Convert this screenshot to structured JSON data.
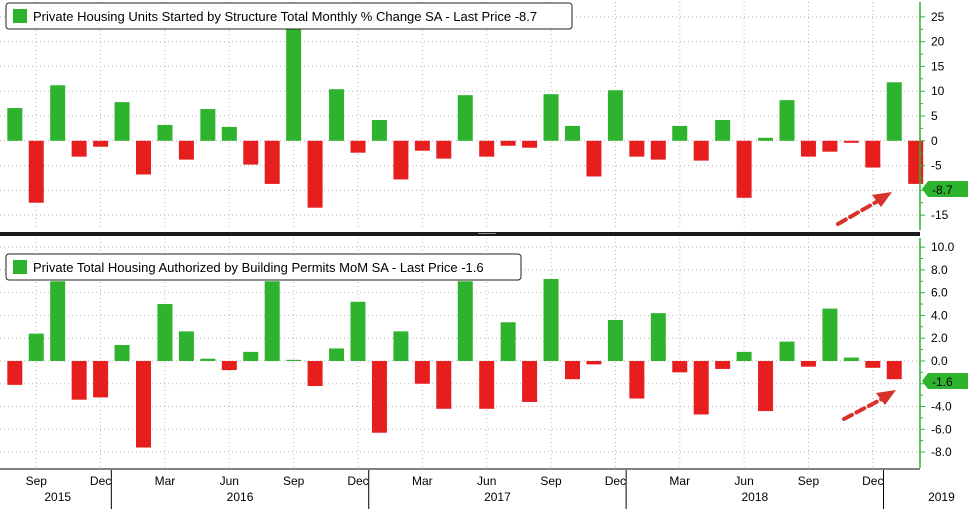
{
  "chart_data": [
    {
      "type": "bar",
      "legend_label": "Private Housing Units Started by Structure Total Monthly % Change SA - Last Price -8.7",
      "last_value_label": "-8.7",
      "ylim": [
        -18,
        28
      ],
      "yticks": [
        -15,
        -10,
        -5,
        0,
        5,
        10,
        15,
        20,
        25
      ],
      "ytick_labels": [
        "-15",
        "-10",
        "-5",
        "0",
        "5",
        "10",
        "15",
        "20",
        "25"
      ],
      "values": [
        6.6,
        -12.5,
        11.2,
        -3.2,
        -1.2,
        7.8,
        -6.8,
        3.2,
        -3.8,
        6.4,
        2.8,
        -4.8,
        -8.7,
        23.0,
        -13.5,
        10.4,
        -2.4,
        4.2,
        -7.8,
        -2.0,
        -3.6,
        9.2,
        -3.2,
        -1.0,
        -1.4,
        9.4,
        3.0,
        -7.2,
        10.2,
        -3.2,
        -3.8,
        3.0,
        -4.0,
        4.2,
        -11.5,
        0.6,
        8.2,
        -3.2,
        -2.2,
        -0.4,
        -5.4,
        11.8,
        -8.7
      ],
      "last_label_bg": "#2db32d"
    },
    {
      "type": "bar",
      "legend_label": "Private Total Housing Authorized by Building Permits MoM SA - Last Price -1.6",
      "last_value_label": "-1.6",
      "ylim": [
        -9.4,
        10.8
      ],
      "yticks": [
        -8,
        -6,
        -4,
        -2,
        0,
        2,
        4,
        6,
        8,
        10
      ],
      "ytick_labels": [
        "-8.0",
        "-6.0",
        "-4.0",
        "-2.0",
        "0.0",
        "2.0",
        "4.0",
        "6.0",
        "8.0",
        "10.0"
      ],
      "values": [
        -2.1,
        2.4,
        7.0,
        -3.4,
        -3.2,
        1.4,
        -7.6,
        5.0,
        2.6,
        0.2,
        -0.8,
        0.8,
        7.0,
        0.1,
        -2.2,
        1.1,
        5.2,
        -6.3,
        2.6,
        -2.0,
        -4.2,
        7.0,
        -4.2,
        3.4,
        -3.6,
        7.2,
        -1.6,
        -0.3,
        3.6,
        -3.3,
        4.2,
        -1.0,
        -4.7,
        -0.7,
        0.8,
        -4.4,
        1.7,
        -0.5,
        4.6,
        0.3,
        -0.6,
        -1.6
      ],
      "last_label_bg": "#2db32d"
    }
  ],
  "x_axis": {
    "month_labels": [
      "Sep",
      "Dec",
      "Mar",
      "Jun",
      "Sep",
      "Dec",
      "Mar",
      "Jun",
      "Sep",
      "Dec",
      "Mar",
      "Jun",
      "Sep",
      "Dec"
    ],
    "year_labels": [
      "2015",
      "2016",
      "2017",
      "2018",
      "2019"
    ]
  },
  "colors": {
    "positive": "#2db32d",
    "negative": "#e61e1e",
    "axis": "#2db32d",
    "grid": "#b4b4b4",
    "arrow": "#d8322a"
  }
}
